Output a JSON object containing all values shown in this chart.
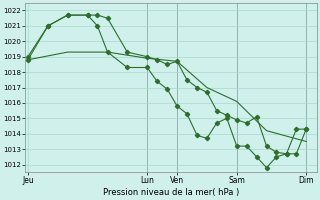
{
  "title": "",
  "xlabel": "Pression niveau de la mer( hPa )",
  "bg_color": "#cff0eb",
  "grid_color": "#a8d8d0",
  "line_color": "#2d6e2d",
  "marker_color": "#2d6e2d",
  "ylim": [
    1011.5,
    1022.5
  ],
  "yticks": [
    1012,
    1013,
    1014,
    1015,
    1016,
    1017,
    1018,
    1019,
    1020,
    1021,
    1022
  ],
  "day_labels": [
    "Jeu",
    "",
    "Lun",
    "Ven",
    "",
    "Sam",
    "",
    "Dim"
  ],
  "day_positions": [
    0,
    2.67,
    4.0,
    5.0,
    5.67,
    7.0,
    8.33,
    9.33
  ],
  "xlim": [
    -0.1,
    9.7
  ],
  "vline_color": "#666666",
  "vline_positions": [
    4.0,
    5.0,
    7.0,
    9.33
  ],
  "line1_x": [
    0,
    0.67,
    1.33,
    2.0,
    2.33,
    2.67,
    3.33,
    4.0,
    4.33,
    4.67,
    5.0,
    5.33,
    5.67,
    6.0,
    6.33,
    6.67,
    7.0,
    7.33,
    7.67,
    8.0,
    8.33,
    8.67,
    9.0,
    9.33
  ],
  "line1_y": [
    1019.0,
    1021.0,
    1021.7,
    1021.7,
    1021.7,
    1021.5,
    1019.3,
    1019.0,
    1018.8,
    1018.5,
    1018.7,
    1017.5,
    1017.0,
    1016.7,
    1015.5,
    1015.2,
    1014.9,
    1014.7,
    1015.1,
    1013.2,
    1012.8,
    1012.7,
    1012.7,
    1014.3
  ],
  "line2_x": [
    0,
    0.67,
    1.33,
    2.0,
    2.33,
    2.67,
    3.33,
    4.0,
    4.33,
    4.67,
    5.0,
    5.33,
    5.67,
    6.0,
    6.33,
    6.67,
    7.0,
    7.33,
    7.67,
    8.0,
    8.33,
    8.67,
    9.0,
    9.33
  ],
  "line2_y": [
    1018.8,
    1021.0,
    1021.7,
    1021.7,
    1021.0,
    1019.3,
    1018.3,
    1018.3,
    1017.4,
    1016.9,
    1015.8,
    1015.3,
    1013.9,
    1013.7,
    1014.7,
    1015.0,
    1013.2,
    1013.2,
    1012.5,
    1011.8,
    1012.5,
    1012.7,
    1014.3,
    1014.3
  ],
  "line3_x": [
    0,
    1.33,
    2.67,
    4.0,
    5.0,
    6.0,
    7.0,
    8.0,
    9.33
  ],
  "line3_y": [
    1018.8,
    1019.3,
    1019.3,
    1018.9,
    1018.7,
    1017.0,
    1016.1,
    1014.2,
    1013.5
  ]
}
